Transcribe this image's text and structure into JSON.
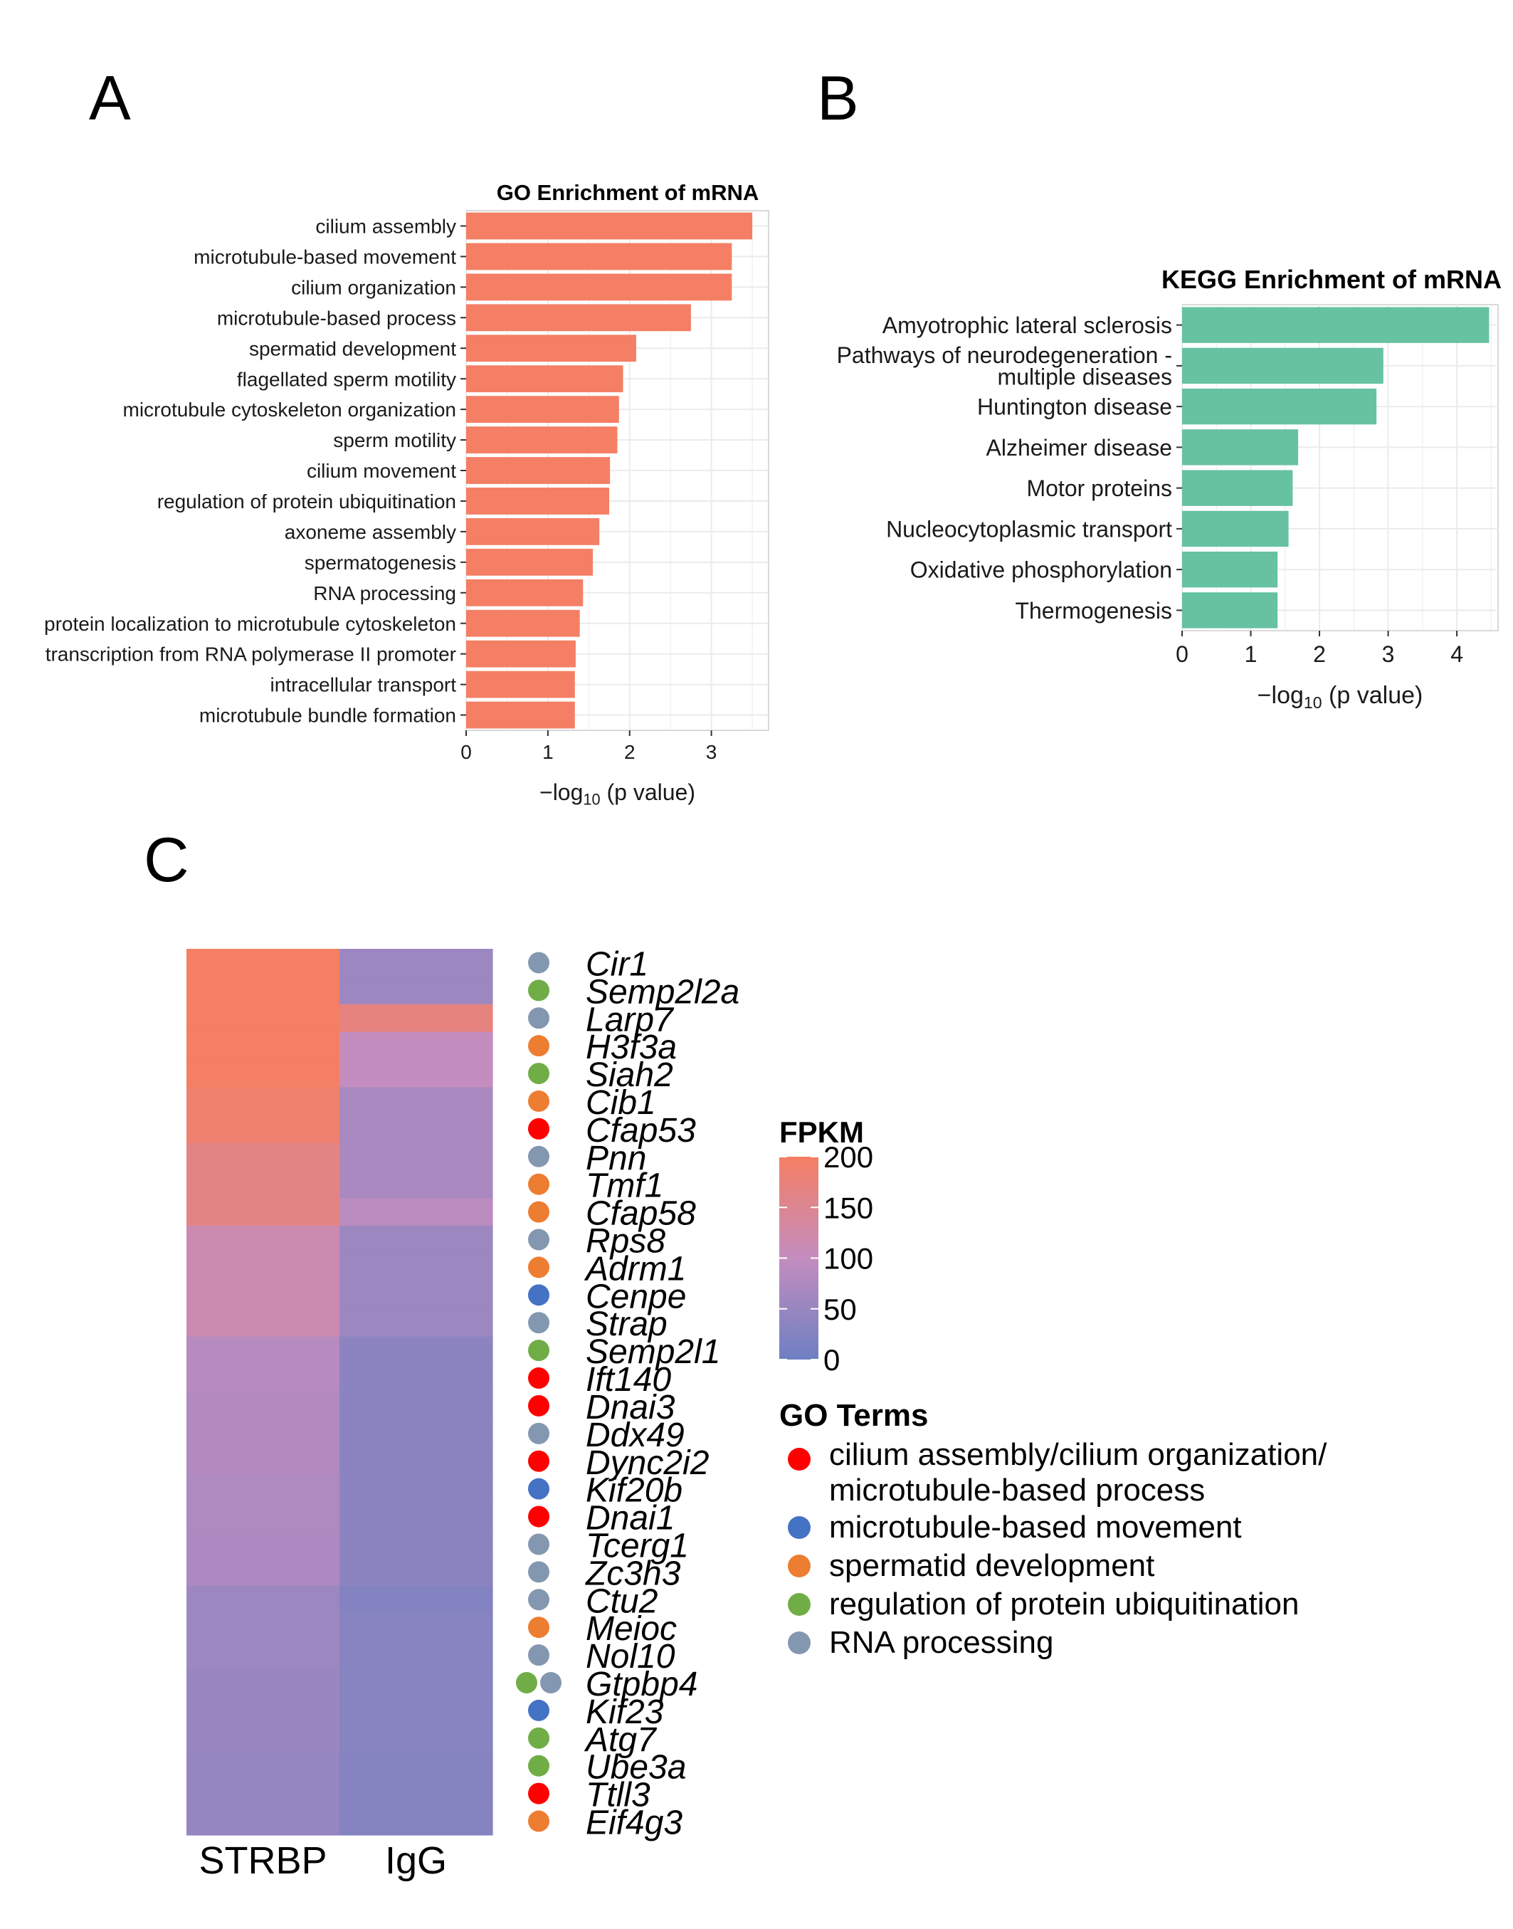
{
  "panels": {
    "a": "A",
    "b": "B",
    "c": "C"
  },
  "colors": {
    "go_bar": "#F47F64",
    "kegg_bar": "#66C2A0",
    "grid": "#EBEBEB",
    "frame": "#D9D9D9",
    "fpkm_low": "#6E7FC2",
    "fpkm_mid": "#C48DBF",
    "fpkm_high": "#F47F64",
    "term_colors": [
      "#FF0000",
      "#4472C4",
      "#ED7D31",
      "#70AD47",
      "#8497B0"
    ]
  },
  "chart_data": [
    {
      "type": "bar",
      "orientation": "horizontal",
      "title": "GO Enrichment of mRNA",
      "xlabel_prefix": "−log",
      "xlabel_sub": "10",
      "xlabel_suffix": " (p value)",
      "xlim": [
        0,
        3.7
      ],
      "xticks": [
        "0",
        "1",
        "2",
        "3"
      ],
      "grid": true,
      "categories": [
        "cilium assembly",
        "microtubule-based movement",
        "cilium organization",
        "microtubule-based process",
        "spermatid development",
        "flagellated sperm motility",
        "microtubule cytoskeleton organization",
        "sperm motility",
        "cilium movement",
        "regulation of protein ubiquitination",
        "axoneme assembly",
        "spermatogenesis",
        "RNA processing",
        "protein localization to microtubule cytoskeleton",
        "transcription from RNA polymerase II promoter",
        "intracellular transport",
        "microtubule bundle formation"
      ],
      "values": [
        3.5,
        3.25,
        3.25,
        2.75,
        2.08,
        1.92,
        1.87,
        1.85,
        1.76,
        1.75,
        1.63,
        1.55,
        1.43,
        1.39,
        1.34,
        1.33,
        1.33
      ]
    },
    {
      "type": "bar",
      "orientation": "horizontal",
      "title": "KEGG Enrichment of mRNA",
      "xlabel_prefix": "−log",
      "xlabel_sub": "10",
      "xlabel_suffix": " (p value)",
      "xlim": [
        0,
        4.6
      ],
      "xticks": [
        "0",
        "1",
        "2",
        "3",
        "4"
      ],
      "grid": true,
      "categories": [
        "Amyotrophic lateral sclerosis",
        "Pathways of neurodegeneration - multiple diseases",
        "Huntington disease",
        "Alzheimer disease",
        "Motor proteins",
        "Nucleocytoplasmic transport",
        "Oxidative phosphorylation",
        "Thermogenesis"
      ],
      "category_lines": [
        [
          "Amyotrophic lateral sclerosis"
        ],
        [
          "Pathways of neurodegeneration -",
          "multiple diseases"
        ],
        [
          "Huntington disease"
        ],
        [
          "Alzheimer disease"
        ],
        [
          "Motor proteins"
        ],
        [
          "Nucleocytoplasmic transport"
        ],
        [
          "Oxidative phosphorylation"
        ],
        [
          "Thermogenesis"
        ]
      ],
      "values": [
        4.47,
        2.93,
        2.83,
        1.69,
        1.61,
        1.55,
        1.39,
        1.39
      ]
    },
    {
      "type": "heatmap",
      "columns": [
        "STRBP",
        "IgG"
      ],
      "rows": [
        "Cir1",
        "Semp2l2a",
        "Larp7",
        "H3f3a",
        "Siah2",
        "Cib1",
        "Cfap53",
        "Pnn",
        "Tmf1",
        "Cfap58",
        "Rps8",
        "Adrm1",
        "Cenpe",
        "Strap",
        "Semp2l1",
        "Ift140",
        "Dnai3",
        "Ddx49",
        "Dync2i2",
        "Kif20b",
        "Dnai1",
        "Tcerg1",
        "Zc3h3",
        "Ctu2",
        "Meioc",
        "Nol10",
        "Gtpbp4",
        "Kif23",
        "Atg7",
        "Ube3a",
        "Ttll3",
        "Eif4g3"
      ],
      "values": [
        [
          200,
          55
        ],
        [
          200,
          55
        ],
        [
          200,
          170
        ],
        [
          200,
          100
        ],
        [
          200,
          100
        ],
        [
          190,
          70
        ],
        [
          190,
          70
        ],
        [
          165,
          70
        ],
        [
          165,
          70
        ],
        [
          165,
          90
        ],
        [
          115,
          55
        ],
        [
          115,
          55
        ],
        [
          115,
          55
        ],
        [
          115,
          55
        ],
        [
          85,
          35
        ],
        [
          85,
          35
        ],
        [
          80,
          35
        ],
        [
          80,
          35
        ],
        [
          80,
          35
        ],
        [
          75,
          35
        ],
        [
          75,
          35
        ],
        [
          72,
          35
        ],
        [
          72,
          35
        ],
        [
          55,
          25
        ],
        [
          55,
          30
        ],
        [
          55,
          30
        ],
        [
          50,
          30
        ],
        [
          50,
          30
        ],
        [
          50,
          30
        ],
        [
          45,
          28
        ],
        [
          45,
          28
        ],
        [
          45,
          28
        ]
      ],
      "row_terms": [
        [
          4
        ],
        [
          3
        ],
        [
          4
        ],
        [
          2
        ],
        [
          3
        ],
        [
          2
        ],
        [
          0
        ],
        [
          4
        ],
        [
          2
        ],
        [
          2
        ],
        [
          4
        ],
        [
          2
        ],
        [
          1
        ],
        [
          4
        ],
        [
          3
        ],
        [
          0
        ],
        [
          0
        ],
        [
          4
        ],
        [
          0
        ],
        [
          1
        ],
        [
          0
        ],
        [
          4
        ],
        [
          4
        ],
        [
          4
        ],
        [
          2
        ],
        [
          4
        ],
        [
          3,
          4
        ],
        [
          1
        ],
        [
          3
        ],
        [
          3
        ],
        [
          0
        ],
        [
          2
        ]
      ],
      "legend_title": "FPKM",
      "legend_ticks": [
        "200",
        "150",
        "100",
        "50",
        "0"
      ],
      "legend_tick_values": [
        200,
        150,
        100,
        50,
        0
      ],
      "value_range": [
        0,
        200
      ],
      "terms_title": "GO Terms",
      "terms": [
        [
          "cilium assembly/cilium organization/",
          "microtubule-based process"
        ],
        [
          "microtubule-based movement"
        ],
        [
          "spermatid development"
        ],
        [
          "regulation of protein ubiquitination"
        ],
        [
          "RNA processing"
        ]
      ]
    }
  ]
}
